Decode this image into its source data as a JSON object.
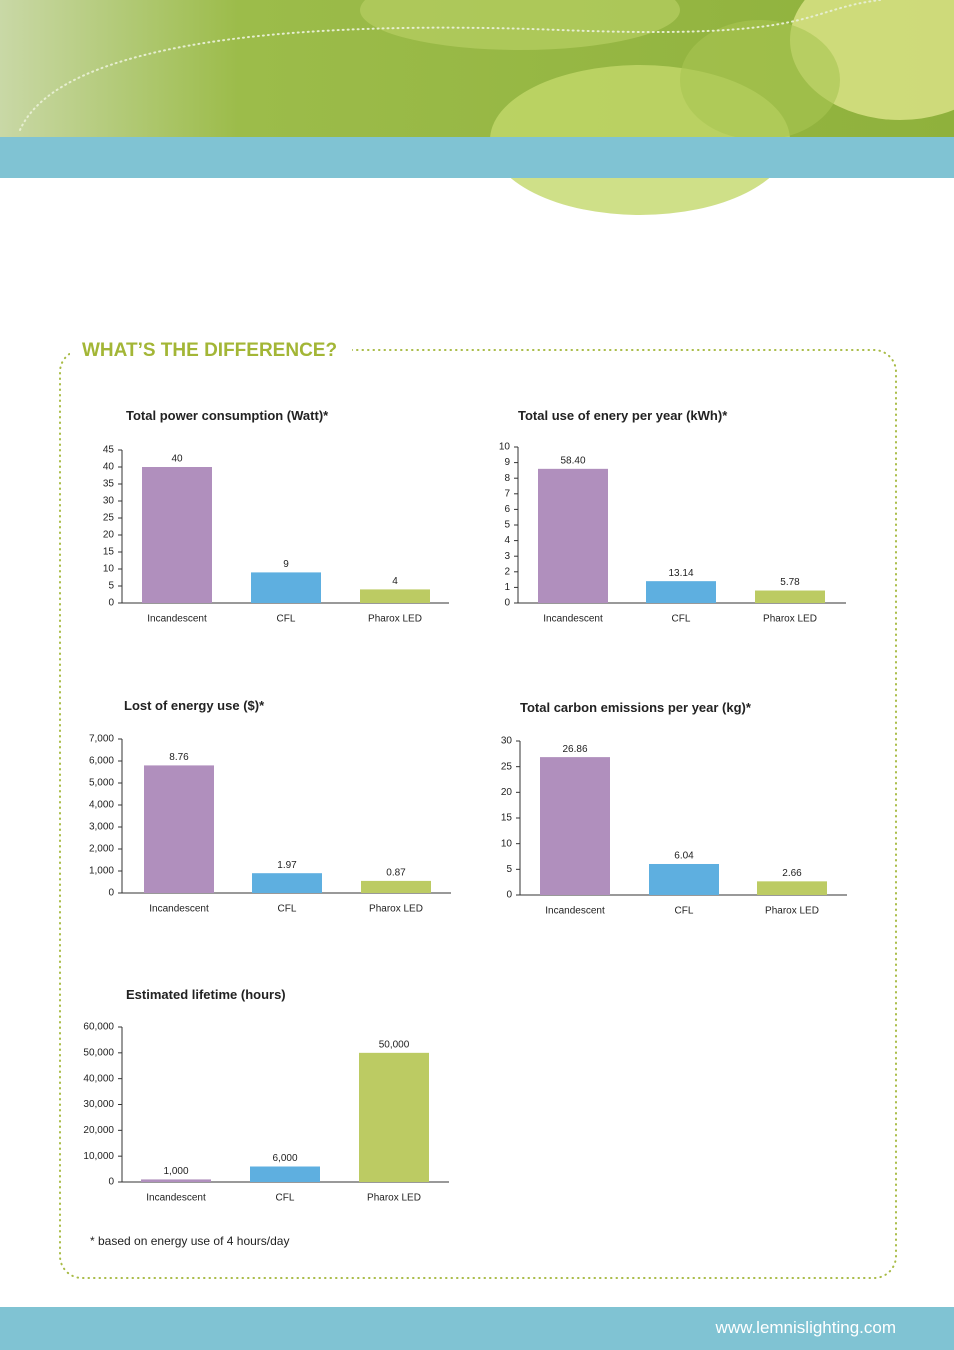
{
  "heading": "WHAT’S THE DIFFERENCE?",
  "footnote": "* based on energy use of 4 hours/day",
  "url": "www.lemnislighting.com",
  "chart_data": [
    {
      "type": "bar",
      "title": "Total power consumption (Watt)*",
      "categories": [
        "Incandescent",
        "CFL",
        "Pharox LED"
      ],
      "values": [
        40,
        9,
        4
      ],
      "colors": [
        "#b08fbd",
        "#5eafe0",
        "#bccb63"
      ],
      "ylim": [
        0,
        45
      ],
      "yticks": [
        0,
        5,
        10,
        15,
        20,
        25,
        30,
        35,
        40,
        45
      ]
    },
    {
      "type": "bar",
      "title": "Total use of enery per year (kWh)*",
      "categories": [
        "Incandescent",
        "CFL",
        "Pharox LED"
      ],
      "values": [
        8.6,
        1.4,
        0.8
      ],
      "annotations": [
        "58.40",
        "13.14",
        "5.78"
      ],
      "colors": [
        "#b08fbd",
        "#5eafe0",
        "#bccb63"
      ],
      "ylim": [
        0,
        10
      ],
      "yticks": [
        0,
        1,
        2,
        3,
        4,
        5,
        6,
        7,
        8,
        9,
        10
      ]
    },
    {
      "type": "bar",
      "title": "Lost of energy use ($)*",
      "categories": [
        "Incandescent",
        "CFL",
        "Pharox LED"
      ],
      "values": [
        5800,
        900,
        550
      ],
      "annotations": [
        "8.76",
        "1.97",
        "0.87"
      ],
      "colors": [
        "#b08fbd",
        "#5eafe0",
        "#bccb63"
      ],
      "ylim": [
        0,
        7000
      ],
      "yticks": [
        0,
        {
          "value": 1000,
          "label": "1,000"
        },
        {
          "value": 2000,
          "label": "2,000"
        },
        {
          "value": 3000,
          "label": "3,000"
        },
        {
          "value": 4000,
          "label": "4,000"
        },
        {
          "value": 5000,
          "label": "5,000"
        },
        {
          "value": 6000,
          "label": "6,000"
        },
        {
          "value": 7000,
          "label": "7,000"
        }
      ]
    },
    {
      "type": "bar",
      "title": "Total carbon emissions per year (kg)*",
      "categories": [
        "Incandescent",
        "CFL",
        "Pharox LED"
      ],
      "values": [
        26.86,
        6.04,
        2.66
      ],
      "colors": [
        "#b08fbd",
        "#5eafe0",
        "#bccb63"
      ],
      "ylim": [
        0,
        30
      ],
      "yticks": [
        0,
        5,
        10,
        15,
        20,
        25,
        30
      ]
    },
    {
      "type": "bar",
      "title": "Estimated lifetime (hours)",
      "categories": [
        "Incandescent",
        "CFL",
        "Pharox LED"
      ],
      "values": [
        1000,
        6000,
        50000
      ],
      "value_labels": [
        "1,000",
        "6,000",
        "50,000"
      ],
      "colors": [
        "#b08fbd",
        "#5eafe0",
        "#bccb63"
      ],
      "ylim": [
        0,
        60000
      ],
      "yticks": [
        0,
        {
          "value": 10000,
          "label": "10,000"
        },
        {
          "value": 20000,
          "label": "20,000"
        },
        {
          "value": 30000,
          "label": "30,000"
        },
        {
          "value": 40000,
          "label": "40,000"
        },
        {
          "value": 50000,
          "label": "50,000"
        },
        {
          "value": 60000,
          "label": "60,000"
        }
      ]
    }
  ]
}
